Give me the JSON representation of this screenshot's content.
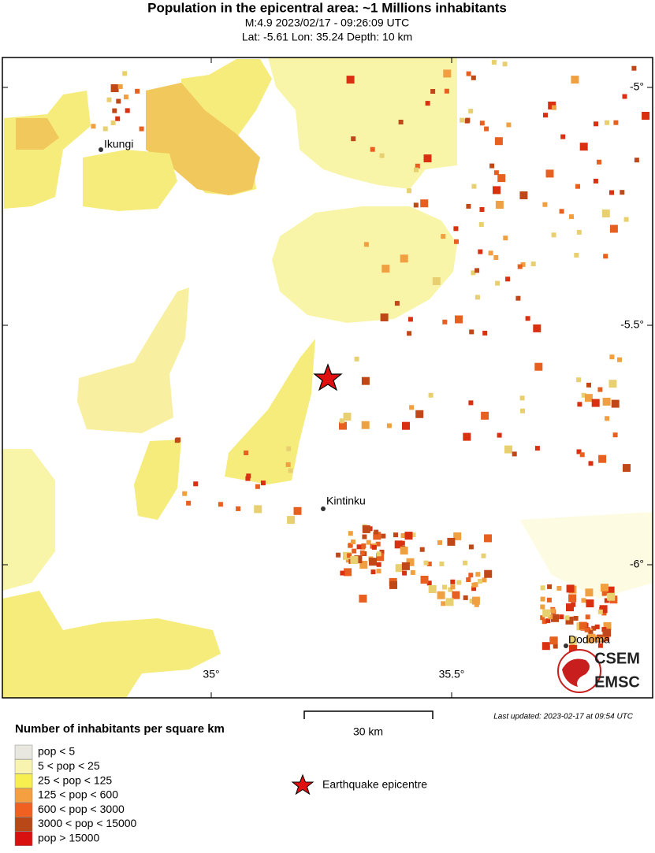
{
  "header": {
    "title": "Population in the epicentral area: ~1 Millions inhabitants",
    "line1": "M:4.9 2023/02/17 - 09:26:09 UTC",
    "line2": "Lat: -5.61 Lon: 35.24 Depth: 10 km"
  },
  "map": {
    "lat_labels": [
      "-5°",
      "-5.5°",
      "-6°"
    ],
    "lon_labels": [
      "35°",
      "35.5°"
    ],
    "places": [
      "Ikungi",
      "Kintinku",
      "Dodoma"
    ],
    "logo": [
      "CSEM",
      "EMSC"
    ]
  },
  "scale_bar": "30 km",
  "last_updated": "Last updated: 2023-02-17 at 09:54 UTC",
  "legend": {
    "title": "Number of inhabitants per square km",
    "items": [
      "pop < 5",
      "5 < pop < 25",
      "25 < pop < 125",
      "125 < pop < 600",
      "600 < pop < 3000",
      "3000 < pop < 15000",
      "pop > 15000"
    ],
    "epicentre": "Earthquake epicentre"
  }
}
